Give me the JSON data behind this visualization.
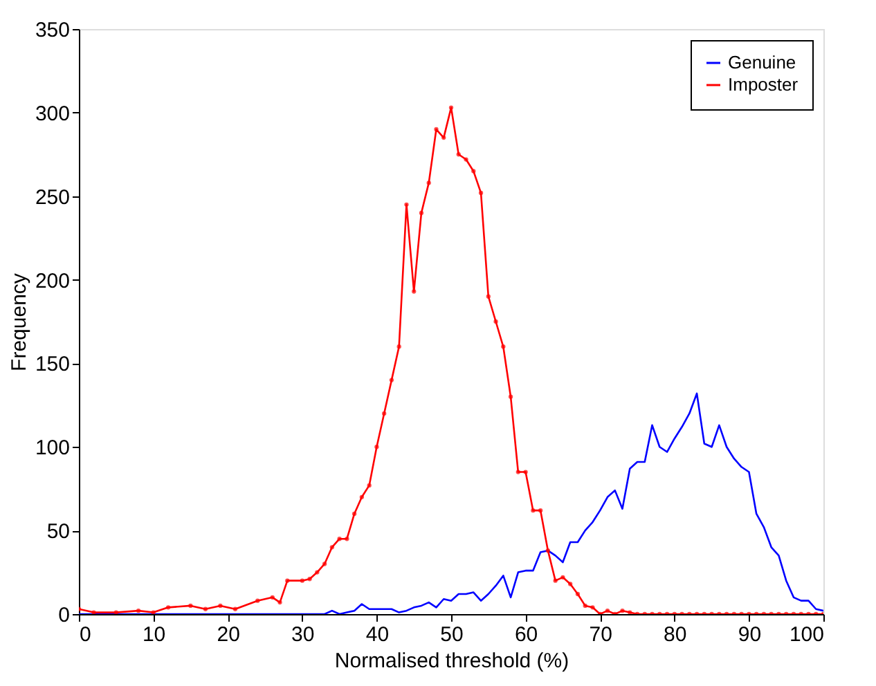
{
  "chart_data": {
    "type": "line",
    "xlabel": "Normalised threshold (%)",
    "ylabel": "Frequency",
    "xlim": [
      0,
      100
    ],
    "ylim": [
      0,
      350
    ],
    "xticks": [
      0,
      10,
      20,
      30,
      40,
      50,
      60,
      70,
      80,
      90,
      100
    ],
    "yticks": [
      0,
      50,
      100,
      150,
      200,
      250,
      300,
      350
    ],
    "grid": false,
    "legend": "top right",
    "line_style": "solid",
    "x": [
      0,
      2,
      5,
      8,
      10,
      12,
      15,
      17,
      19,
      21,
      24,
      26,
      27,
      28,
      30,
      31,
      32,
      33,
      34,
      35,
      36,
      37,
      38,
      39,
      40,
      41,
      42,
      43,
      44,
      45,
      46,
      47,
      48,
      49,
      50,
      51,
      52,
      53,
      54,
      55,
      56,
      57,
      58,
      59,
      60,
      61,
      62,
      63,
      64,
      65,
      66,
      67,
      68,
      69,
      70,
      71,
      72,
      73,
      74,
      75,
      76,
      77,
      78,
      79,
      80,
      81,
      82,
      83,
      84,
      85,
      86,
      87,
      88,
      89,
      90,
      91,
      92,
      93,
      94,
      95,
      96,
      97,
      98,
      99,
      100
    ],
    "series": [
      {
        "name": "Genuine",
        "color": "#0000ff",
        "marker": "none",
        "values": [
          0,
          0,
          0,
          0,
          0,
          0,
          0,
          0,
          0,
          0,
          0,
          0,
          0,
          0,
          0,
          0,
          0,
          0,
          2,
          0,
          1,
          2,
          6,
          3,
          3,
          3,
          3,
          1,
          2,
          4,
          5,
          7,
          4,
          9,
          8,
          12,
          12,
          13,
          8,
          12,
          17,
          23,
          10,
          25,
          26,
          26,
          37,
          38,
          35,
          31,
          43,
          43,
          50,
          55,
          62,
          70,
          74,
          63,
          87,
          91,
          91,
          113,
          100,
          97,
          105,
          112,
          120,
          132,
          102,
          100,
          113,
          100,
          93,
          88,
          85,
          60,
          52,
          40,
          35,
          20,
          10,
          8,
          8,
          3,
          2
        ]
      },
      {
        "name": "Imposter",
        "color": "#ff0000",
        "marker": "circle",
        "values": [
          3,
          1,
          1,
          2,
          1,
          4,
          5,
          3,
          5,
          3,
          8,
          10,
          7,
          20,
          20,
          21,
          25,
          30,
          40,
          45,
          45,
          60,
          70,
          77,
          100,
          120,
          140,
          160,
          245,
          193,
          240,
          258,
          290,
          285,
          303,
          275,
          272,
          265,
          252,
          190,
          175,
          160,
          130,
          85,
          85,
          62,
          62,
          38,
          20,
          22,
          18,
          12,
          5,
          4,
          0,
          2,
          0,
          2,
          1,
          0,
          0,
          0,
          0,
          0,
          0,
          0,
          0,
          0,
          0,
          0,
          0,
          0,
          0,
          0,
          0,
          0,
          0,
          0,
          0,
          0,
          0,
          0,
          0,
          0,
          0
        ]
      }
    ]
  }
}
